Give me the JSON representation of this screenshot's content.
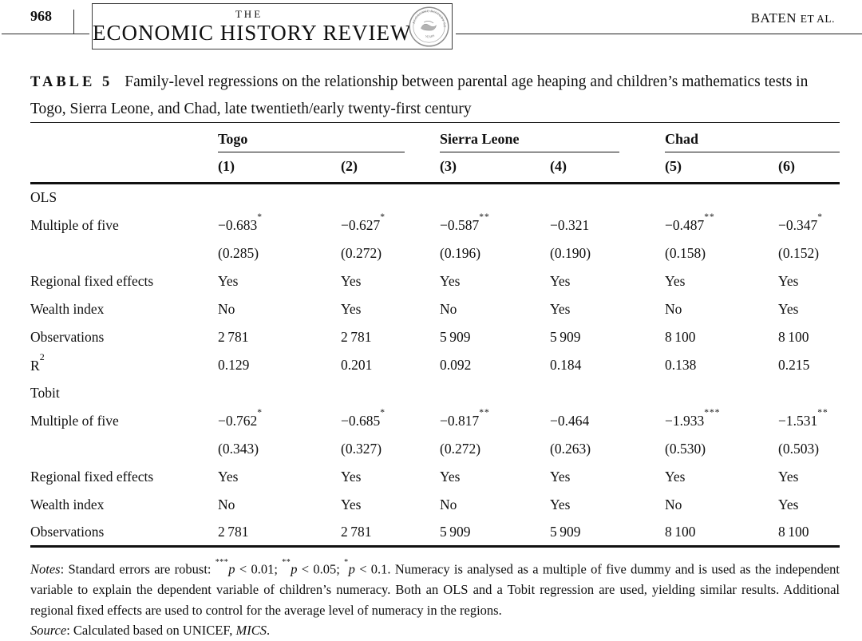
{
  "header": {
    "page_number": "968",
    "journal_the": "THE",
    "journal_title": "ECONOMIC HISTORY REVIEW",
    "author_main": "BATEN",
    "author_suffix": "ET AL.",
    "seal_ring_text": "ECONOMIC HISTORY SOCIETY",
    "seal_bottom_text": "YEARS"
  },
  "caption": {
    "label": "TABLE 5",
    "text": "Family-level regressions on the relationship between parental age heaping and children’s mathematics tests in Togo, Sierra Leone, and Chad, late twentieth/early twenty-first century"
  },
  "table": {
    "groups": [
      {
        "label": "Togo"
      },
      {
        "label": "Sierra Leone"
      },
      {
        "label": "Chad"
      }
    ],
    "column_numbers": [
      "(1)",
      "(2)",
      "(3)",
      "(4)",
      "(5)",
      "(6)"
    ],
    "sections": [
      {
        "title": "OLS",
        "rows": [
          {
            "label": "Multiple of five",
            "cells": [
              {
                "v": "−0.683",
                "s": "*"
              },
              {
                "v": "−0.627",
                "s": "*"
              },
              {
                "v": "−0.587",
                "s": "**"
              },
              {
                "v": "−0.321",
                "s": ""
              },
              {
                "v": "−0.487",
                "s": "**"
              },
              {
                "v": "−0.347",
                "s": "*"
              }
            ]
          },
          {
            "label": "",
            "cells": [
              {
                "v": "(0.285)",
                "s": ""
              },
              {
                "v": "(0.272)",
                "s": ""
              },
              {
                "v": "(0.196)",
                "s": ""
              },
              {
                "v": "(0.190)",
                "s": ""
              },
              {
                "v": "(0.158)",
                "s": ""
              },
              {
                "v": "(0.152)",
                "s": ""
              }
            ]
          },
          {
            "label": "Regional fixed effects",
            "cells": [
              {
                "v": "Yes",
                "s": ""
              },
              {
                "v": "Yes",
                "s": ""
              },
              {
                "v": "Yes",
                "s": ""
              },
              {
                "v": "Yes",
                "s": ""
              },
              {
                "v": "Yes",
                "s": ""
              },
              {
                "v": "Yes",
                "s": ""
              }
            ]
          },
          {
            "label": "Wealth index",
            "cells": [
              {
                "v": "No",
                "s": ""
              },
              {
                "v": "Yes",
                "s": ""
              },
              {
                "v": "No",
                "s": ""
              },
              {
                "v": "Yes",
                "s": ""
              },
              {
                "v": "No",
                "s": ""
              },
              {
                "v": "Yes",
                "s": ""
              }
            ]
          },
          {
            "label": "Observations",
            "cells": [
              {
                "v": "2 781",
                "s": ""
              },
              {
                "v": "2 781",
                "s": ""
              },
              {
                "v": "5 909",
                "s": ""
              },
              {
                "v": "5 909",
                "s": ""
              },
              {
                "v": "8 100",
                "s": ""
              },
              {
                "v": "8 100",
                "s": ""
              }
            ]
          },
          {
            "label": "R",
            "label_sup": "2",
            "cells": [
              {
                "v": "0.129",
                "s": ""
              },
              {
                "v": "0.201",
                "s": ""
              },
              {
                "v": "0.092",
                "s": ""
              },
              {
                "v": "0.184",
                "s": ""
              },
              {
                "v": "0.138",
                "s": ""
              },
              {
                "v": "0.215",
                "s": ""
              }
            ]
          }
        ]
      },
      {
        "title": "Tobit",
        "rows": [
          {
            "label": "Multiple of five",
            "cells": [
              {
                "v": "−0.762",
                "s": "*"
              },
              {
                "v": "−0.685",
                "s": "*"
              },
              {
                "v": "−0.817",
                "s": "**"
              },
              {
                "v": "−0.464",
                "s": ""
              },
              {
                "v": "−1.933",
                "s": "***"
              },
              {
                "v": "−1.531",
                "s": "**"
              }
            ]
          },
          {
            "label": "",
            "cells": [
              {
                "v": "(0.343)",
                "s": ""
              },
              {
                "v": "(0.327)",
                "s": ""
              },
              {
                "v": "(0.272)",
                "s": ""
              },
              {
                "v": "(0.263)",
                "s": ""
              },
              {
                "v": "(0.530)",
                "s": ""
              },
              {
                "v": "(0.503)",
                "s": ""
              }
            ]
          },
          {
            "label": "Regional fixed effects",
            "cells": [
              {
                "v": "Yes",
                "s": ""
              },
              {
                "v": "Yes",
                "s": ""
              },
              {
                "v": "Yes",
                "s": ""
              },
              {
                "v": "Yes",
                "s": ""
              },
              {
                "v": "Yes",
                "s": ""
              },
              {
                "v": "Yes",
                "s": ""
              }
            ]
          },
          {
            "label": "Wealth index",
            "cells": [
              {
                "v": "No",
                "s": ""
              },
              {
                "v": "Yes",
                "s": ""
              },
              {
                "v": "No",
                "s": ""
              },
              {
                "v": "Yes",
                "s": ""
              },
              {
                "v": "No",
                "s": ""
              },
              {
                "v": "Yes",
                "s": ""
              }
            ]
          },
          {
            "label": "Observations",
            "cells": [
              {
                "v": "2 781",
                "s": ""
              },
              {
                "v": "2 781",
                "s": ""
              },
              {
                "v": "5 909",
                "s": ""
              },
              {
                "v": "5 909",
                "s": ""
              },
              {
                "v": "8 100",
                "s": ""
              },
              {
                "v": "8 100",
                "s": ""
              }
            ]
          }
        ]
      }
    ]
  },
  "notes": {
    "label": "Notes",
    "intro": ": Standard errors are robust: ",
    "sig": [
      {
        "stars": "***",
        "p": "p",
        "cmp": " < 0.01; "
      },
      {
        "stars": "**",
        "p": "p",
        "cmp": " < 0.05; "
      },
      {
        "stars": "*",
        "p": "p",
        "cmp": " < 0.1. "
      }
    ],
    "body": "Numeracy is analysed as a multiple of five dummy and is used as the independent variable to explain the dependent variable of children’s numeracy. Both an OLS and a Tobit regression are used, yielding similar results. Additional regional fixed effects are used to control for the average level of numeracy in the regions.",
    "source_label": "Source",
    "source_mid": ": Calculated based on UNICEF, ",
    "source_italic": "MICS",
    "source_end": "."
  }
}
